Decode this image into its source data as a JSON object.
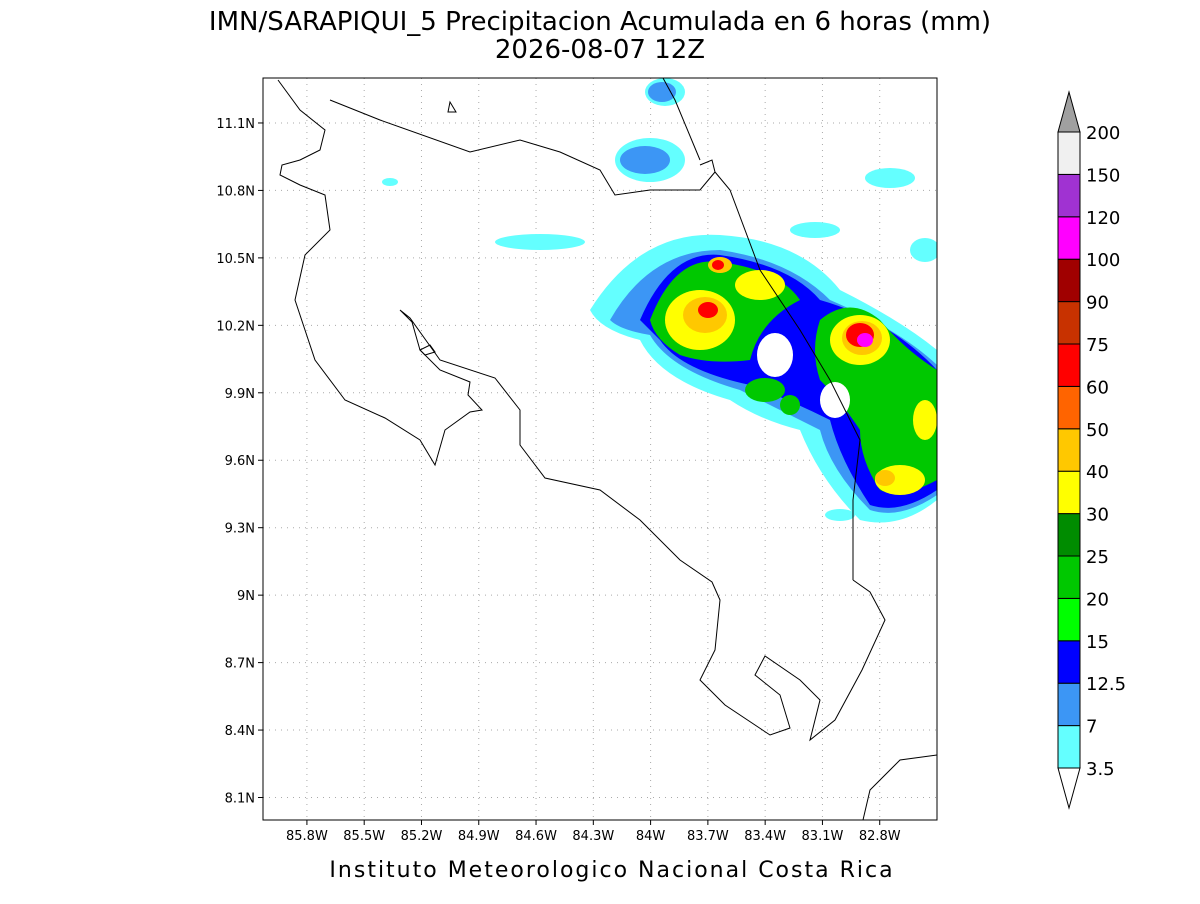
{
  "title": [
    "IMN/SARAPIQUI_5 Precipitacion Acumulada en 6 horas (mm)",
    "2026-08-07 12Z"
  ],
  "footer": "Instituto Meteorologico Nacional Costa Rica",
  "map": {
    "lonlim": [
      -86.03,
      -82.5
    ],
    "latlim": [
      8.0,
      11.3
    ],
    "lonticks": [
      {
        "value": -85.8,
        "label": "85.8W"
      },
      {
        "value": -85.5,
        "label": "85.5W"
      },
      {
        "value": -85.2,
        "label": "85.2W"
      },
      {
        "value": -84.9,
        "label": "84.9W"
      },
      {
        "value": -84.6,
        "label": "84.6W"
      },
      {
        "value": -84.3,
        "label": "84.3W"
      },
      {
        "value": -84,
        "label": "84W"
      },
      {
        "value": -83.7,
        "label": "83.7W"
      },
      {
        "value": -83.4,
        "label": "83.4W"
      },
      {
        "value": -83.1,
        "label": "83.1W"
      },
      {
        "value": -82.8,
        "label": "82.8W"
      }
    ],
    "latticks": [
      {
        "value": 11.1,
        "label": "11.1N"
      },
      {
        "value": 10.8,
        "label": "10.8N"
      },
      {
        "value": 10.5,
        "label": "10.5N"
      },
      {
        "value": 10.2,
        "label": "10.2N"
      },
      {
        "value": 9.9,
        "label": "9.9N"
      },
      {
        "value": 9.6,
        "label": "9.6N"
      },
      {
        "value": 9.3,
        "label": "9.3N"
      },
      {
        "value": 9,
        "label": "9N"
      },
      {
        "value": 8.7,
        "label": "8.7N"
      },
      {
        "value": 8.4,
        "label": "8.4N"
      },
      {
        "value": 8.1,
        "label": "8.1N"
      }
    ]
  },
  "colorbar": {
    "levels": [
      3.5,
      7,
      12.5,
      15,
      20,
      25,
      30,
      40,
      50,
      60,
      75,
      90,
      100,
      120,
      150,
      200
    ],
    "colors": [
      "#ffffff",
      "#64ffff",
      "#3c96f5",
      "#0000ff",
      "#00ff00",
      "#00c800",
      "#008c00",
      "#ffff00",
      "#ffc800",
      "#ff6400",
      "#ff0000",
      "#c83200",
      "#a00000",
      "#ff00ff",
      "#a032d2",
      "#f0f0f0",
      "#a0a0a0"
    ]
  }
}
